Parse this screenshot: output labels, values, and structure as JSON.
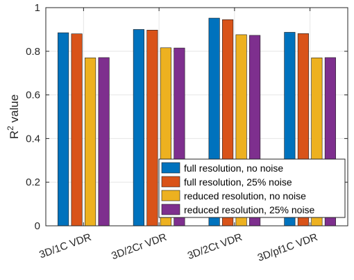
{
  "chart_data": {
    "type": "bar",
    "categories": [
      "3D/1C VDR",
      "3D/2Cr VDR",
      "3D/2Ct VDR",
      "3D/pf1C VDR"
    ],
    "series": [
      {
        "name": "full resolution, no noise",
        "color": "#0072BD",
        "values": [
          0.885,
          0.9,
          0.952,
          0.887
        ]
      },
      {
        "name": "full resolution, 25% noise",
        "color": "#D95319",
        "values": [
          0.88,
          0.897,
          0.945,
          0.881
        ]
      },
      {
        "name": "reduced resolution, no noise",
        "color": "#EDB120",
        "values": [
          0.77,
          0.816,
          0.876,
          0.77
        ]
      },
      {
        "name": "reduced resolution, 25% noise",
        "color": "#7E2F8E",
        "values": [
          0.771,
          0.815,
          0.873,
          0.771
        ]
      }
    ],
    "ylabel_base": "R",
    "ylabel_sup": "2",
    "ylabel_rest": " value",
    "ylim": [
      0,
      1
    ],
    "yticks": [
      "0",
      "0.2",
      "0.4",
      "0.6",
      "0.8",
      "1"
    ],
    "grid": true,
    "legend_position": "bottom-right"
  }
}
